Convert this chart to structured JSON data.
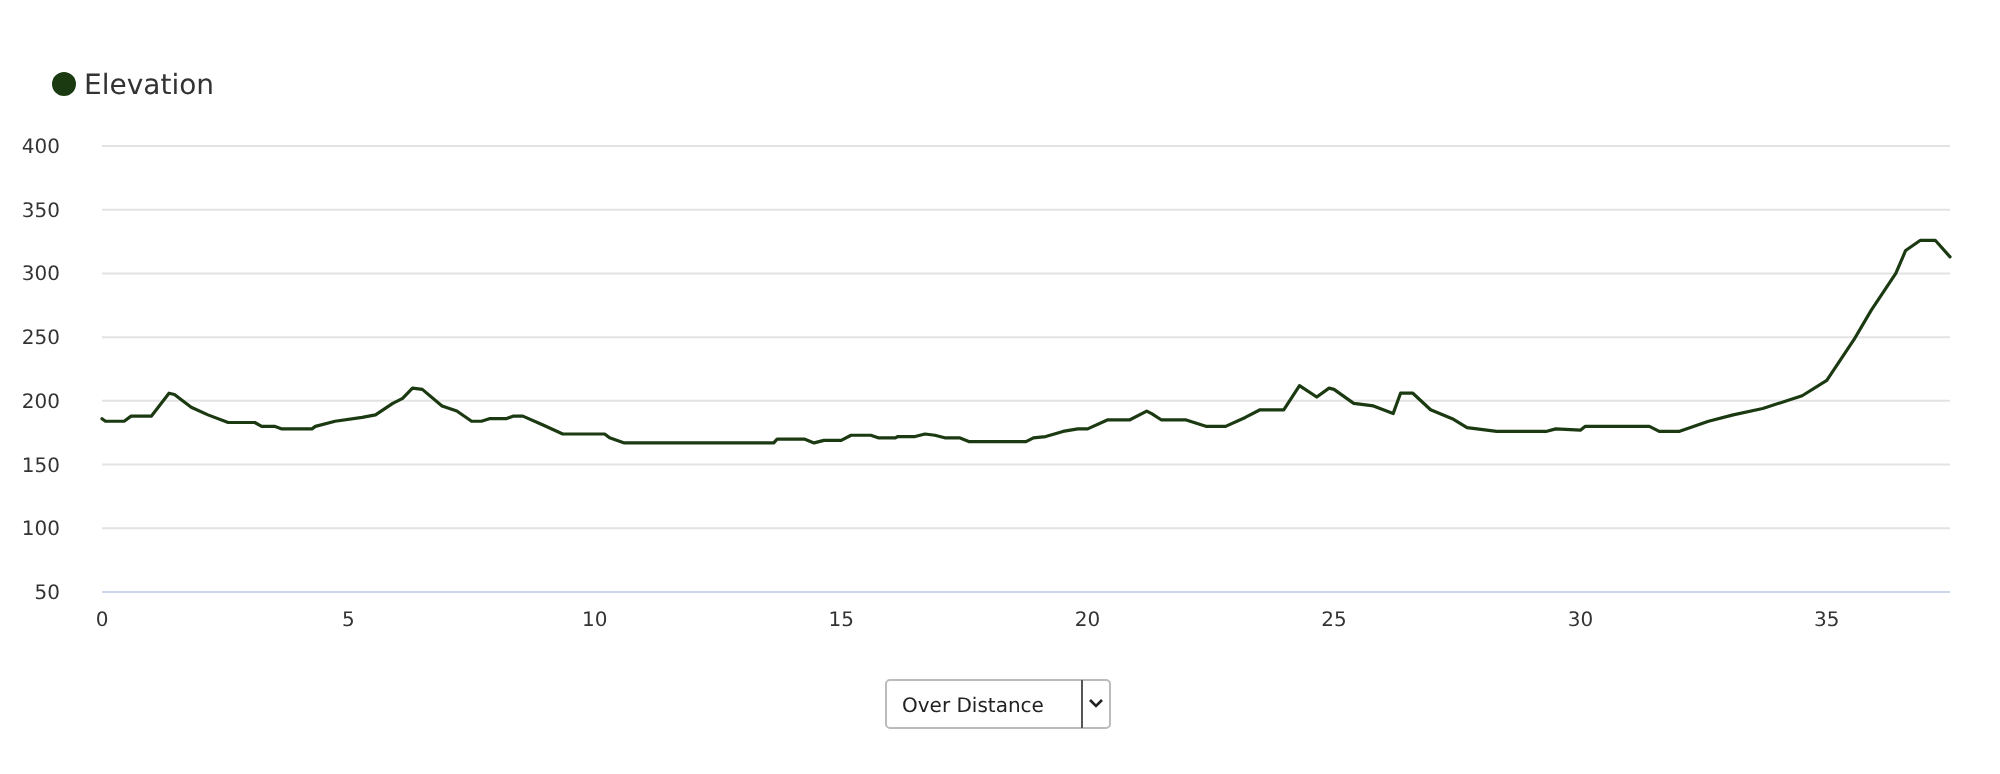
{
  "chart_data": {
    "type": "line",
    "x": [
      0,
      0.07,
      0.45,
      0.59,
      1.0,
      1.36,
      1.47,
      1.81,
      2.15,
      2.56,
      3.1,
      3.24,
      3.5,
      3.65,
      4.26,
      4.33,
      4.73,
      5.28,
      5.55,
      5.9,
      6.1,
      6.3,
      6.5,
      6.9,
      7.2,
      7.5,
      7.7,
      7.86,
      8.2,
      8.34,
      8.54,
      8.95,
      9.35,
      10.2,
      10.3,
      10.6,
      11.0,
      11.33,
      13.63,
      13.7,
      14.25,
      14.45,
      14.65,
      15.0,
      15.2,
      15.6,
      15.75,
      16.1,
      16.15,
      16.5,
      16.7,
      16.9,
      17.1,
      17.4,
      17.6,
      18.75,
      18.9,
      19.15,
      19.5,
      19.8,
      20.0,
      20.4,
      20.85,
      21.2,
      21.3,
      21.5,
      22.0,
      22.4,
      22.8,
      23.2,
      23.5,
      23.98,
      24.3,
      24.65,
      24.9,
      25.0,
      25.4,
      25.8,
      26.2,
      26.35,
      26.6,
      26.96,
      27.4,
      27.7,
      28.3,
      29.3,
      29.5,
      30.0,
      30.1,
      31.4,
      31.6,
      32.0,
      32.6,
      33.1,
      33.7,
      34.5,
      35.0,
      35.55,
      35.9,
      36.4,
      36.6,
      36.9,
      37.2,
      37.5
    ],
    "series": [
      {
        "name": "Elevation",
        "color": "#1b3a12",
        "values": [
          186,
          184,
          184,
          188,
          188,
          206,
          205,
          195,
          189,
          183,
          183,
          180,
          180,
          178,
          178,
          180,
          184,
          187,
          189,
          198,
          202,
          210,
          209,
          196,
          192,
          184,
          184,
          186,
          186,
          188,
          188,
          181,
          174,
          174,
          171,
          167,
          167,
          167,
          167,
          170,
          170,
          167,
          169,
          169,
          173,
          173,
          171,
          171,
          172,
          172,
          174,
          173,
          171,
          171,
          168,
          168,
          171,
          172,
          176,
          178,
          178,
          185,
          185,
          192,
          190,
          185,
          185,
          180,
          180,
          187,
          193,
          193,
          212,
          203,
          210,
          209,
          198,
          196,
          190,
          206,
          206,
          193,
          186,
          179,
          176,
          176,
          178,
          177,
          180,
          180,
          176,
          176,
          184,
          189,
          194,
          204,
          216,
          248,
          271,
          300,
          318,
          326,
          326,
          313
        ]
      }
    ],
    "xlim": [
      0,
      37.5
    ],
    "xticks": [
      0,
      5,
      10,
      15,
      20,
      25,
      30,
      35
    ],
    "ylim": [
      50,
      400
    ],
    "yticks": [
      50,
      100,
      150,
      200,
      250,
      300,
      350,
      400
    ],
    "grid": "y",
    "legend": "top left",
    "marker": "none",
    "line_style": "solid",
    "annotations": [
      "Over Distance"
    ]
  }
}
